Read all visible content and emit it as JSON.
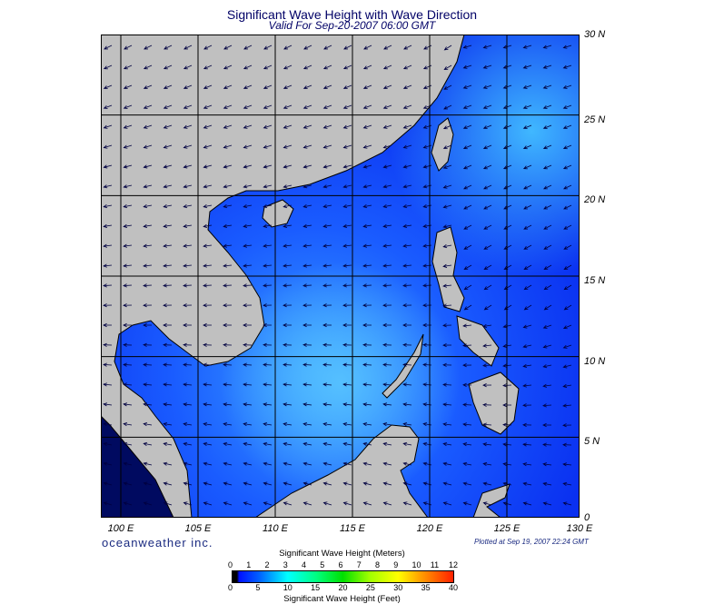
{
  "title": "Significant Wave Height with Wave Direction",
  "subtitle": "Valid For Sep-20-2007 06:00 GMT",
  "lon_labels": [
    "100 E",
    "105 E",
    "110 E",
    "115 E",
    "120 E",
    "125 E",
    "130 E"
  ],
  "lat_labels": [
    "30 N",
    "25 N",
    "20 N",
    "15 N",
    "10 N",
    "5 N",
    "0"
  ],
  "brand": "oceanweather inc.",
  "plotted": "Plotted at Sep 19, 2007 22:24 GMT",
  "colorbar": {
    "meters_label": "Significant Wave Height (Meters)",
    "feet_label": "Significant Wave Height (Feet)",
    "meters_ticks": [
      "0",
      "1",
      "2",
      "3",
      "4",
      "5",
      "6",
      "7",
      "8",
      "9",
      "10",
      "11",
      "12"
    ],
    "feet_ticks": [
      "0",
      "5",
      "10",
      "15",
      "20",
      "25",
      "30",
      "35",
      "40"
    ]
  },
  "colors": {
    "land": "#c0c0c0",
    "sea_low": "#0020e0",
    "sea_mid": "#2a7bff",
    "sea_high": "#40b0ff"
  }
}
